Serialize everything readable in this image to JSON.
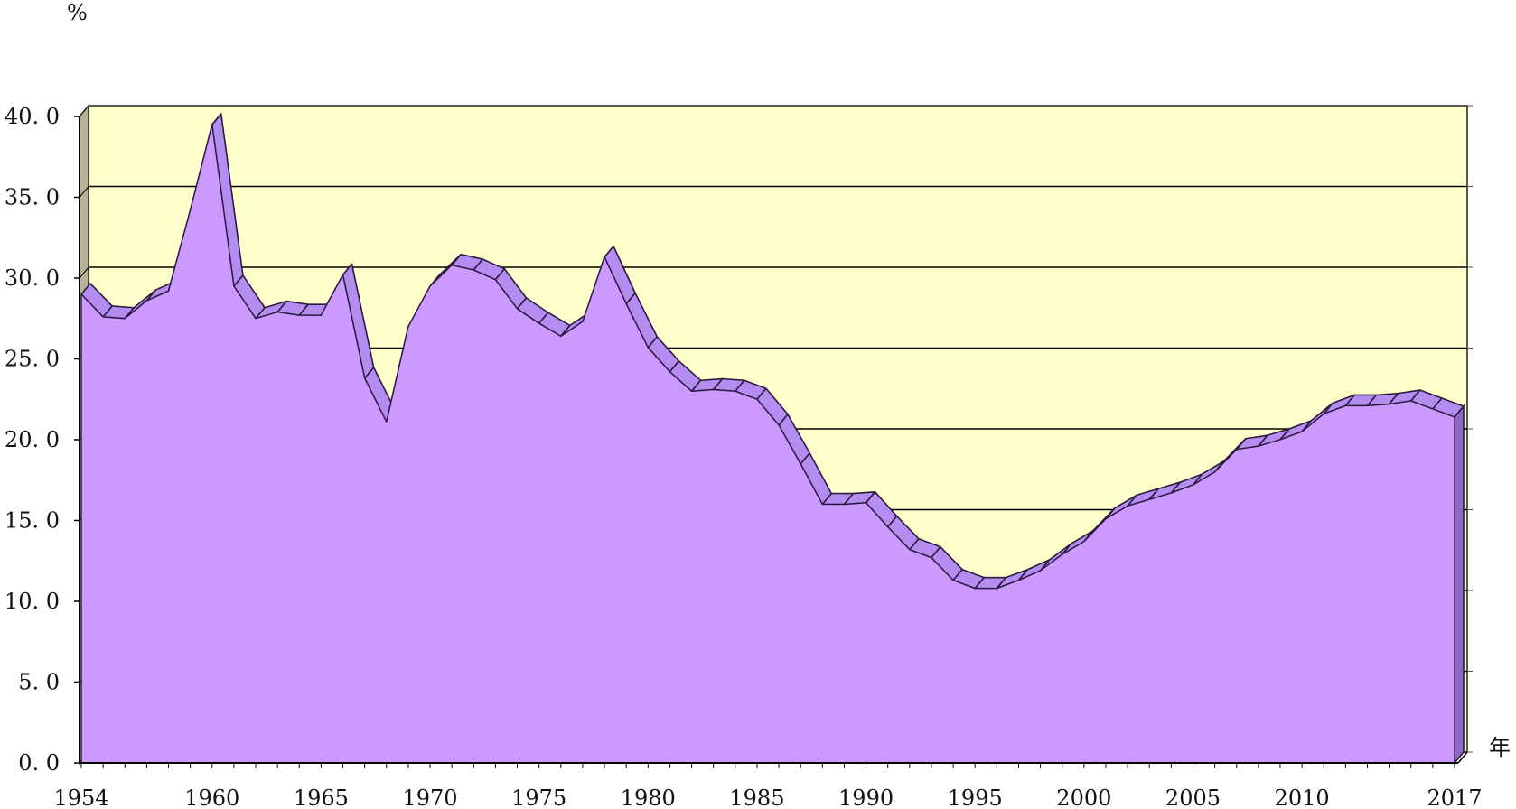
{
  "chart_data": {
    "type": "area",
    "title": "",
    "xlabel": "年",
    "ylabel": "%",
    "ylim": [
      0,
      40
    ],
    "yticks": [
      0,
      5,
      10,
      15,
      20,
      25,
      30,
      35,
      40
    ],
    "ytick_labels": [
      "0. 0",
      "5. 0",
      "10. 0",
      "15. 0",
      "20. 0",
      "25. 0",
      "30. 0",
      "35. 0",
      "40. 0"
    ],
    "xtick_labels": [
      "1954",
      "1960",
      "1965",
      "1970",
      "1975",
      "1980",
      "1985",
      "1990",
      "1995",
      "2000",
      "2005",
      "2010",
      "2017"
    ],
    "grid": true,
    "legend": "none",
    "colors": {
      "area_fill": "#cc99ff",
      "area_edge": "#8e67c9",
      "area_top": "#b58cf0",
      "plot_background": "#ffffcc",
      "left_wall": "#b7b495",
      "grid": "#000000"
    },
    "x": [
      1954,
      1955,
      1956,
      1957,
      1958,
      1959,
      1960,
      1961,
      1962,
      1963,
      1964,
      1965,
      1966,
      1967,
      1968,
      1969,
      1970,
      1971,
      1972,
      1973,
      1974,
      1975,
      1976,
      1977,
      1978,
      1979,
      1980,
      1981,
      1982,
      1983,
      1984,
      1985,
      1986,
      1987,
      1988,
      1989,
      1990,
      1991,
      1992,
      1993,
      1994,
      1995,
      1996,
      1997,
      1998,
      1999,
      2000,
      2001,
      2002,
      2003,
      2004,
      2005,
      2006,
      2007,
      2008,
      2009,
      2010,
      2011,
      2012,
      2013,
      2014,
      2015,
      2016,
      2017
    ],
    "series": [
      {
        "values": [
          29.0,
          27.6,
          27.5,
          28.6,
          29.2,
          34.2,
          39.5,
          29.5,
          27.5,
          27.9,
          27.7,
          27.7,
          30.2,
          23.8,
          21.1,
          27.0,
          29.5,
          30.8,
          30.5,
          29.9,
          28.1,
          27.2,
          26.4,
          27.3,
          31.3,
          28.4,
          25.7,
          24.2,
          23.0,
          23.1,
          23.0,
          22.5,
          20.9,
          18.5,
          16.0,
          16.0,
          16.1,
          14.6,
          13.2,
          12.7,
          11.3,
          10.8,
          10.8,
          11.3,
          11.9,
          12.9,
          13.7,
          15.1,
          15.9,
          16.3,
          16.7,
          17.2,
          18.0,
          19.4,
          19.6,
          20.0,
          20.5,
          21.6,
          22.1,
          22.1,
          22.2,
          22.4,
          21.9,
          21.4
        ]
      }
    ]
  }
}
